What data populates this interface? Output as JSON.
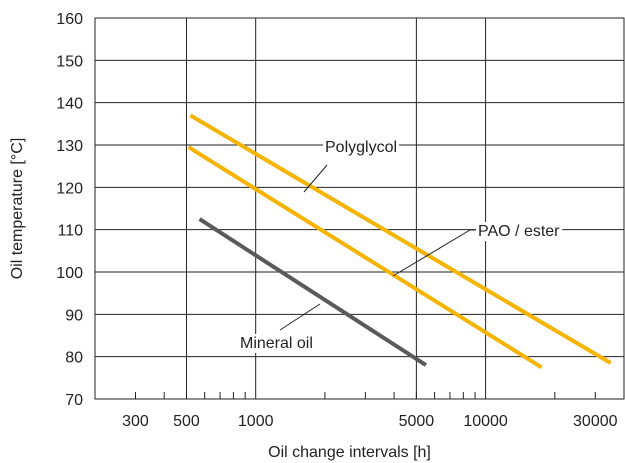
{
  "chart_data": {
    "type": "line",
    "title": "",
    "xlabel": "Oil change intervals [h]",
    "ylabel": "Oil temperature  [°C]",
    "x_scale": "log",
    "xlim": [
      200,
      40000
    ],
    "ylim": [
      70,
      160
    ],
    "x_ticks": [
      300,
      500,
      1000,
      5000,
      10000,
      30000
    ],
    "x_tick_labels": [
      "300",
      "500",
      "1000",
      "5000",
      "10000",
      "30000"
    ],
    "y_ticks": [
      70,
      80,
      90,
      100,
      110,
      120,
      130,
      140,
      150,
      160
    ],
    "y_tick_labels": [
      "70",
      "80",
      "90",
      "100",
      "110",
      "120",
      "130",
      "140",
      "150",
      "160"
    ],
    "grid": true,
    "legend": "inline labels with leader lines",
    "series": [
      {
        "name": "Polyglycol",
        "color": "#F5B400",
        "x": [
          520,
          35000
        ],
        "y": [
          137,
          78.5
        ]
      },
      {
        "name": "PAO / ester",
        "color": "#F5B400",
        "x": [
          510,
          17500
        ],
        "y": [
          129.5,
          77.5
        ]
      },
      {
        "name": "Mineral oil",
        "color": "#5A5A5A",
        "x": [
          570,
          5500
        ],
        "y": [
          112.5,
          78
        ]
      }
    ]
  }
}
